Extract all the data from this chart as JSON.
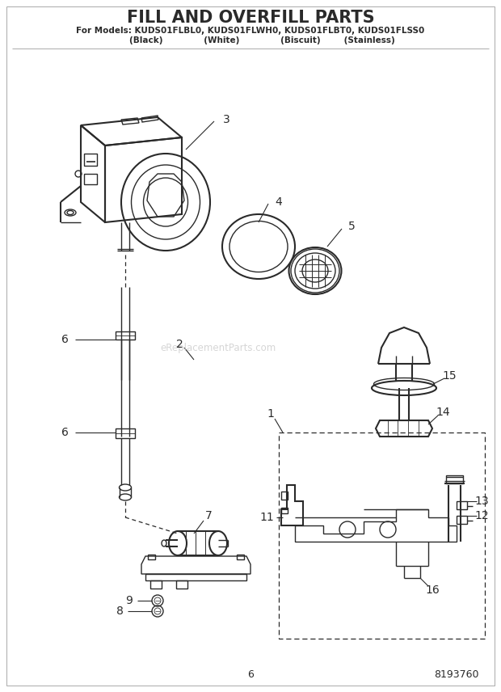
{
  "title": "FILL AND OVERFILL PARTS",
  "subtitle_line1": "For Models: KUDS01FLBL0, KUDS01FLWH0, KUDS01FLBT0, KUDS01FLSS0",
  "subtitle_line2": "        (Black)              (White)              (Biscuit)        (Stainless)",
  "page_number": "6",
  "part_number": "8193760",
  "watermark": "eReplacementParts.com",
  "background_color": "#ffffff",
  "line_color": "#2a2a2a",
  "label_color": "#2a2a2a",
  "title_fontsize": 15,
  "subtitle_fontsize": 7.5,
  "label_fontsize": 9,
  "fig_width": 6.2,
  "fig_height": 8.56,
  "dpi": 100
}
